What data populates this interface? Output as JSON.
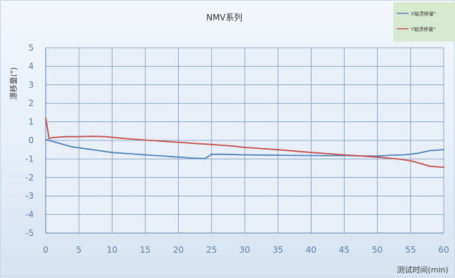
{
  "chart_data": {
    "type": "line",
    "title": "NMV系列",
    "xlabel": "测试时间(min)",
    "ylabel": "漂移量(\")",
    "xlim": [
      0,
      60
    ],
    "ylim": [
      -5,
      5
    ],
    "x_ticks": [
      "0",
      "5",
      "10",
      "15",
      "20",
      "25",
      "30",
      "35",
      "40",
      "45",
      "50",
      "55",
      "60"
    ],
    "y_ticks": [
      "5",
      "4",
      "3",
      "2",
      "1",
      "0",
      "-1",
      "-2",
      "-3",
      "-4",
      "-5"
    ],
    "grid": true,
    "legend_position": "top-right",
    "series": [
      {
        "name": "X轴漂移量\"",
        "color": "#4f81bd",
        "x": [
          0,
          0.5,
          2,
          4,
          6,
          8,
          10,
          12,
          15,
          18,
          20,
          22,
          24,
          25,
          27,
          30,
          35,
          40,
          45,
          50,
          52,
          54,
          56,
          58,
          60
        ],
        "y": [
          0.05,
          0.0,
          -0.15,
          -0.35,
          -0.45,
          -0.55,
          -0.65,
          -0.7,
          -0.78,
          -0.85,
          -0.9,
          -0.95,
          -0.98,
          -0.75,
          -0.75,
          -0.78,
          -0.8,
          -0.82,
          -0.82,
          -0.85,
          -0.8,
          -0.78,
          -0.7,
          -0.55,
          -0.5
        ]
      },
      {
        "name": "Y轴漂移量\"",
        "color": "#c0504d",
        "x": [
          0,
          0.5,
          1,
          3,
          5,
          7,
          9,
          12,
          15,
          18,
          20,
          22,
          25,
          28,
          30,
          35,
          40,
          45,
          50,
          53,
          55,
          57,
          58,
          60
        ],
        "y": [
          1.2,
          0.1,
          0.15,
          0.2,
          0.2,
          0.22,
          0.2,
          0.1,
          0.02,
          -0.05,
          -0.1,
          -0.15,
          -0.22,
          -0.3,
          -0.38,
          -0.5,
          -0.65,
          -0.78,
          -0.9,
          -1.0,
          -1.1,
          -1.3,
          -1.4,
          -1.45
        ]
      }
    ]
  }
}
